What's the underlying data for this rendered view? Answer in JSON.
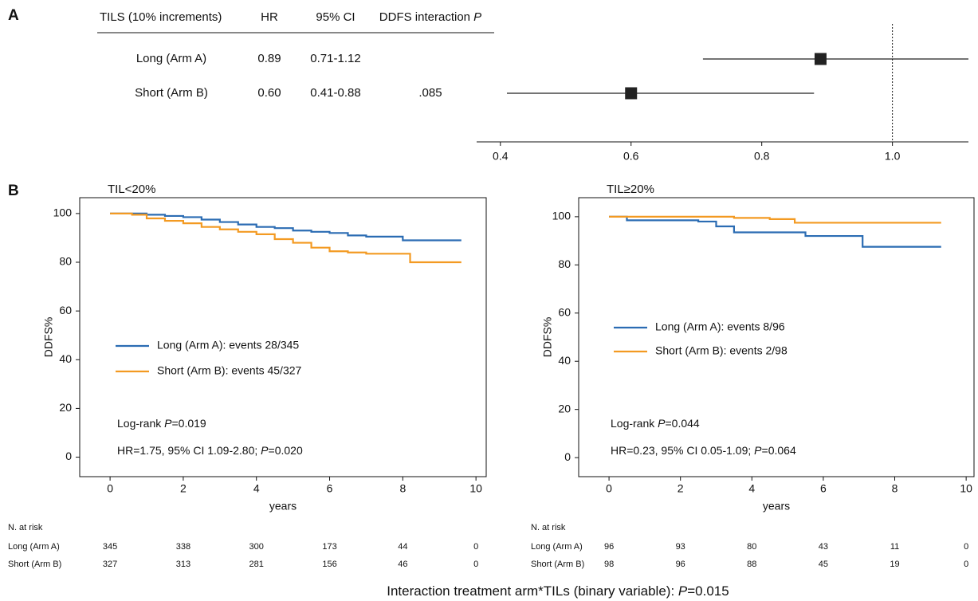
{
  "panel_labels": [
    "A",
    "B"
  ],
  "chart_data": [
    {
      "type": "forest",
      "columns": [
        "TILS (10% increments)",
        "HR",
        "95% CI"
      ],
      "p_column": [
        "DDFS interaction ",
        "P"
      ],
      "categories": [
        "Long (Arm A)",
        "Short (Arm B)"
      ],
      "values": [
        0.89,
        0.6
      ],
      "value_labels": [
        "0.89",
        "0.60"
      ],
      "ci_low": [
        0.71,
        0.41
      ],
      "ci_high": [
        1.12,
        0.88
      ],
      "ci_labels": [
        "0.71-1.12",
        "0.41-0.88"
      ],
      "p_values": [
        null,
        0.085
      ],
      "p_labels": [
        null,
        ".085"
      ],
      "reference": 1,
      "xlim": [
        0.36,
        1.12
      ],
      "xticks": [
        0.4,
        0.6,
        0.8,
        {
          "value": 1,
          "label": "1.0"
        }
      ],
      "color": "#222222"
    },
    {
      "type": "km",
      "title": "TIL<20%",
      "ylabel": "DDFS%",
      "xlabel": "years",
      "xlim": [
        -0.83,
        10.28
      ],
      "ylim": [
        -8,
        106.5
      ],
      "xticks": [
        0,
        2,
        4,
        6,
        8,
        10
      ],
      "yticks": [
        0,
        20,
        40,
        60,
        80,
        100
      ],
      "series": [
        {
          "name": "Long (Arm A): events 28/345",
          "color": "#2b6cb3",
          "x": [
            0,
            0.6,
            1,
            1.5,
            2,
            2.5,
            3,
            3.5,
            4,
            4.5,
            5,
            5.5,
            6,
            6.5,
            7,
            7.5,
            8,
            9.6
          ],
          "values": [
            100,
            100,
            99.5,
            99,
            98.5,
            97.5,
            96.5,
            95.5,
            94.5,
            94,
            93,
            92.5,
            92,
            91,
            90.5,
            90.5,
            89,
            89
          ]
        },
        {
          "name": "Short (Arm B): events 45/327",
          "color": "#f39a22",
          "x": [
            0,
            0.6,
            1,
            1.5,
            2,
            2.5,
            3,
            3.5,
            4,
            4.5,
            5,
            5.5,
            6,
            6.5,
            7,
            7.5,
            8.2,
            9.6
          ],
          "values": [
            100,
            99.5,
            98,
            97,
            96,
            94.5,
            93.5,
            92.5,
            91.5,
            89.5,
            88,
            86,
            84.5,
            84,
            83.5,
            83.5,
            80,
            80
          ]
        }
      ],
      "annotations": [
        [
          "Log-rank ",
          "P",
          "=0.019"
        ],
        [
          "HR=1.75, 95% CI 1.09-2.80; ",
          "P",
          "=0.020"
        ]
      ],
      "risk_table": {
        "title": "N. at risk",
        "rows": [
          {
            "name": "Long (Arm A)",
            "counts": [
              345,
              338,
              300,
              173,
              44,
              0
            ]
          },
          {
            "name": "Short (Arm B)",
            "counts": [
              327,
              313,
              281,
              156,
              46,
              0
            ]
          }
        ]
      }
    },
    {
      "type": "km",
      "title": "TIL≥20%",
      "ylabel": "DDFS%",
      "xlabel": "years",
      "xlim": [
        -0.85,
        10.22
      ],
      "ylim": [
        -7.9,
        107.9
      ],
      "xticks": [
        0,
        2,
        4,
        6,
        8,
        10
      ],
      "yticks": [
        0,
        20,
        40,
        60,
        80,
        100
      ],
      "series": [
        {
          "name": "Long (Arm A): events 8/96",
          "color": "#2b6cb3",
          "x": [
            0,
            0.5,
            2.5,
            3,
            3.5,
            5.5,
            7.1,
            9.3
          ],
          "values": [
            100,
            98.5,
            98,
            96,
            93.5,
            92,
            87.5,
            87.5
          ]
        },
        {
          "name": "Short (Arm B): events 2/98",
          "color": "#f39a22",
          "x": [
            0,
            3.5,
            4.5,
            5.2,
            9.3
          ],
          "values": [
            100,
            99.5,
            99,
            97.5,
            97.5
          ]
        }
      ],
      "annotations": [
        [
          "Log-rank ",
          "P",
          "=0.044"
        ],
        [
          "HR=0.23, 95% CI 0.05-1.09; ",
          "P",
          "=0.064"
        ]
      ],
      "risk_table": {
        "title": "N. at risk",
        "rows": [
          {
            "name": "Long (Arm A)",
            "counts": [
              96,
              93,
              80,
              43,
              11,
              0
            ]
          },
          {
            "name": "Short (Arm B)",
            "counts": [
              98,
              96,
              88,
              45,
              19,
              0
            ]
          }
        ]
      }
    }
  ],
  "footer": [
    "Interaction treatment arm*TILs (binary variable): ",
    "P",
    "=0.015"
  ]
}
